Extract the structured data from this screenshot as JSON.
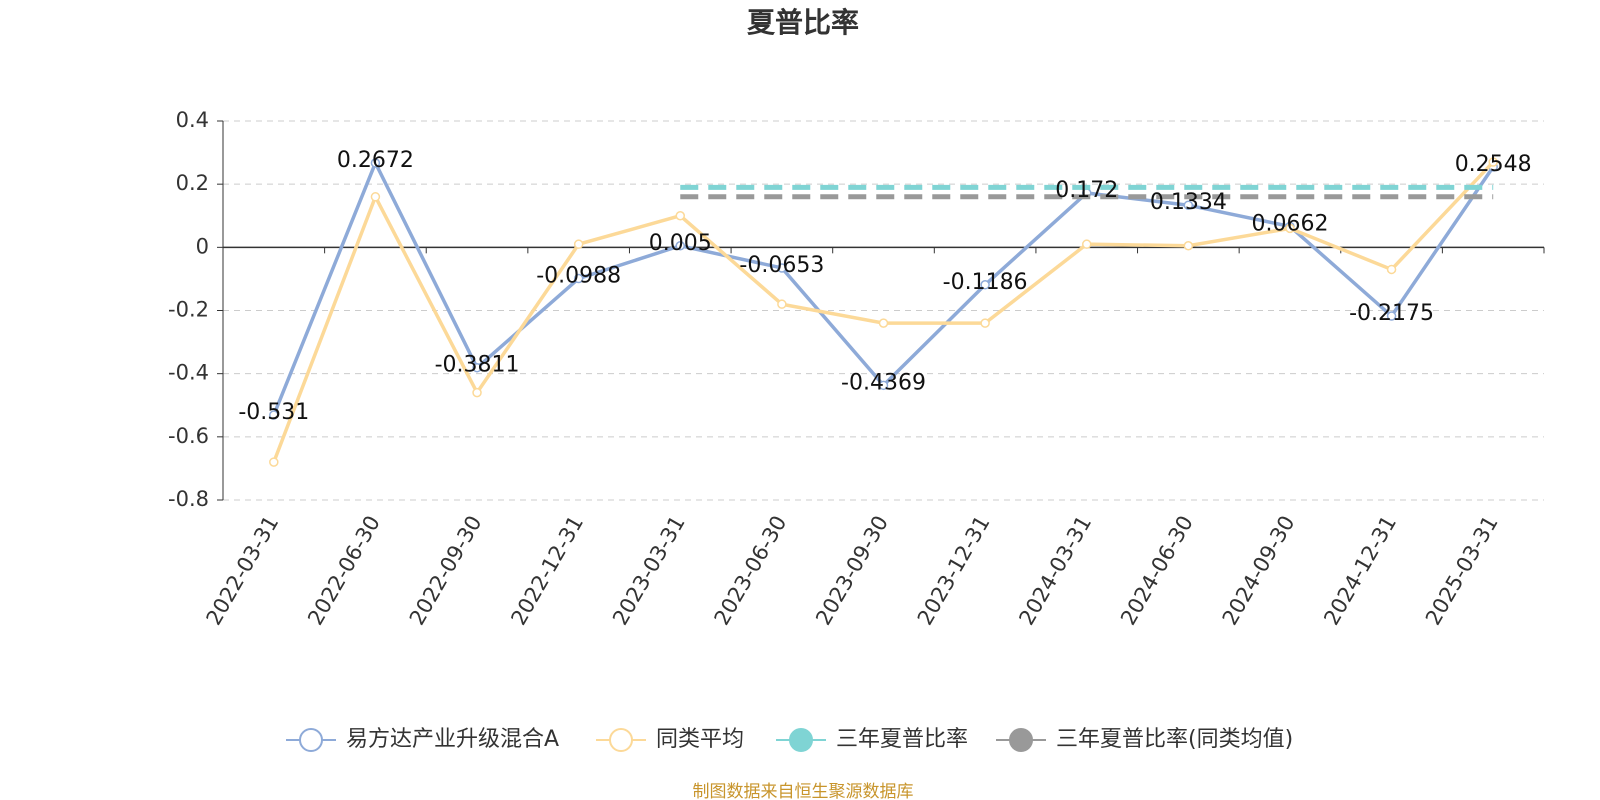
{
  "chart_data": {
    "type": "line",
    "title": "夏普比率",
    "categories": [
      "2022-03-31",
      "2022-06-30",
      "2022-09-30",
      "2022-12-31",
      "2023-03-31",
      "2023-06-30",
      "2023-09-30",
      "2023-12-31",
      "2024-03-31",
      "2024-06-30",
      "2024-09-30",
      "2024-12-31",
      "2025-03-31"
    ],
    "series": [
      {
        "name": "易方达产业升级混合A",
        "color": "#8eaad8",
        "style": "solid",
        "labels": true,
        "values": [
          -0.531,
          0.2672,
          -0.3811,
          -0.0988,
          0.005,
          -0.0653,
          -0.4369,
          -0.1186,
          0.172,
          0.1334,
          0.0662,
          -0.2175,
          0.2548
        ]
      },
      {
        "name": "同类平均",
        "color": "#fcd998",
        "style": "solid",
        "labels": false,
        "values": [
          -0.68,
          0.16,
          -0.46,
          0.01,
          0.1,
          -0.18,
          -0.24,
          -0.24,
          0.01,
          0.005,
          0.06,
          -0.07,
          0.27
        ]
      },
      {
        "name": "三年夏普比率",
        "color": "#7fd4d4",
        "style": "dashed",
        "labels": false,
        "values": [
          null,
          null,
          null,
          null,
          0.19,
          0.19,
          0.19,
          0.19,
          0.19,
          0.19,
          0.19,
          0.19,
          0.19
        ]
      },
      {
        "name": "三年夏普比率(同类均值)",
        "color": "#999999",
        "style": "dashed",
        "labels": false,
        "values": [
          null,
          null,
          null,
          null,
          0.16,
          0.16,
          0.16,
          0.16,
          0.16,
          0.16,
          0.16,
          0.16,
          0.16
        ]
      }
    ],
    "ylim": [
      -0.8,
      0.4
    ],
    "yticks": [
      -0.8,
      -0.6,
      -0.4,
      -0.2,
      0,
      0.2,
      0.4
    ],
    "grid": true,
    "legend": "bottom",
    "source": "制图数据来自恒生聚源数据库"
  }
}
